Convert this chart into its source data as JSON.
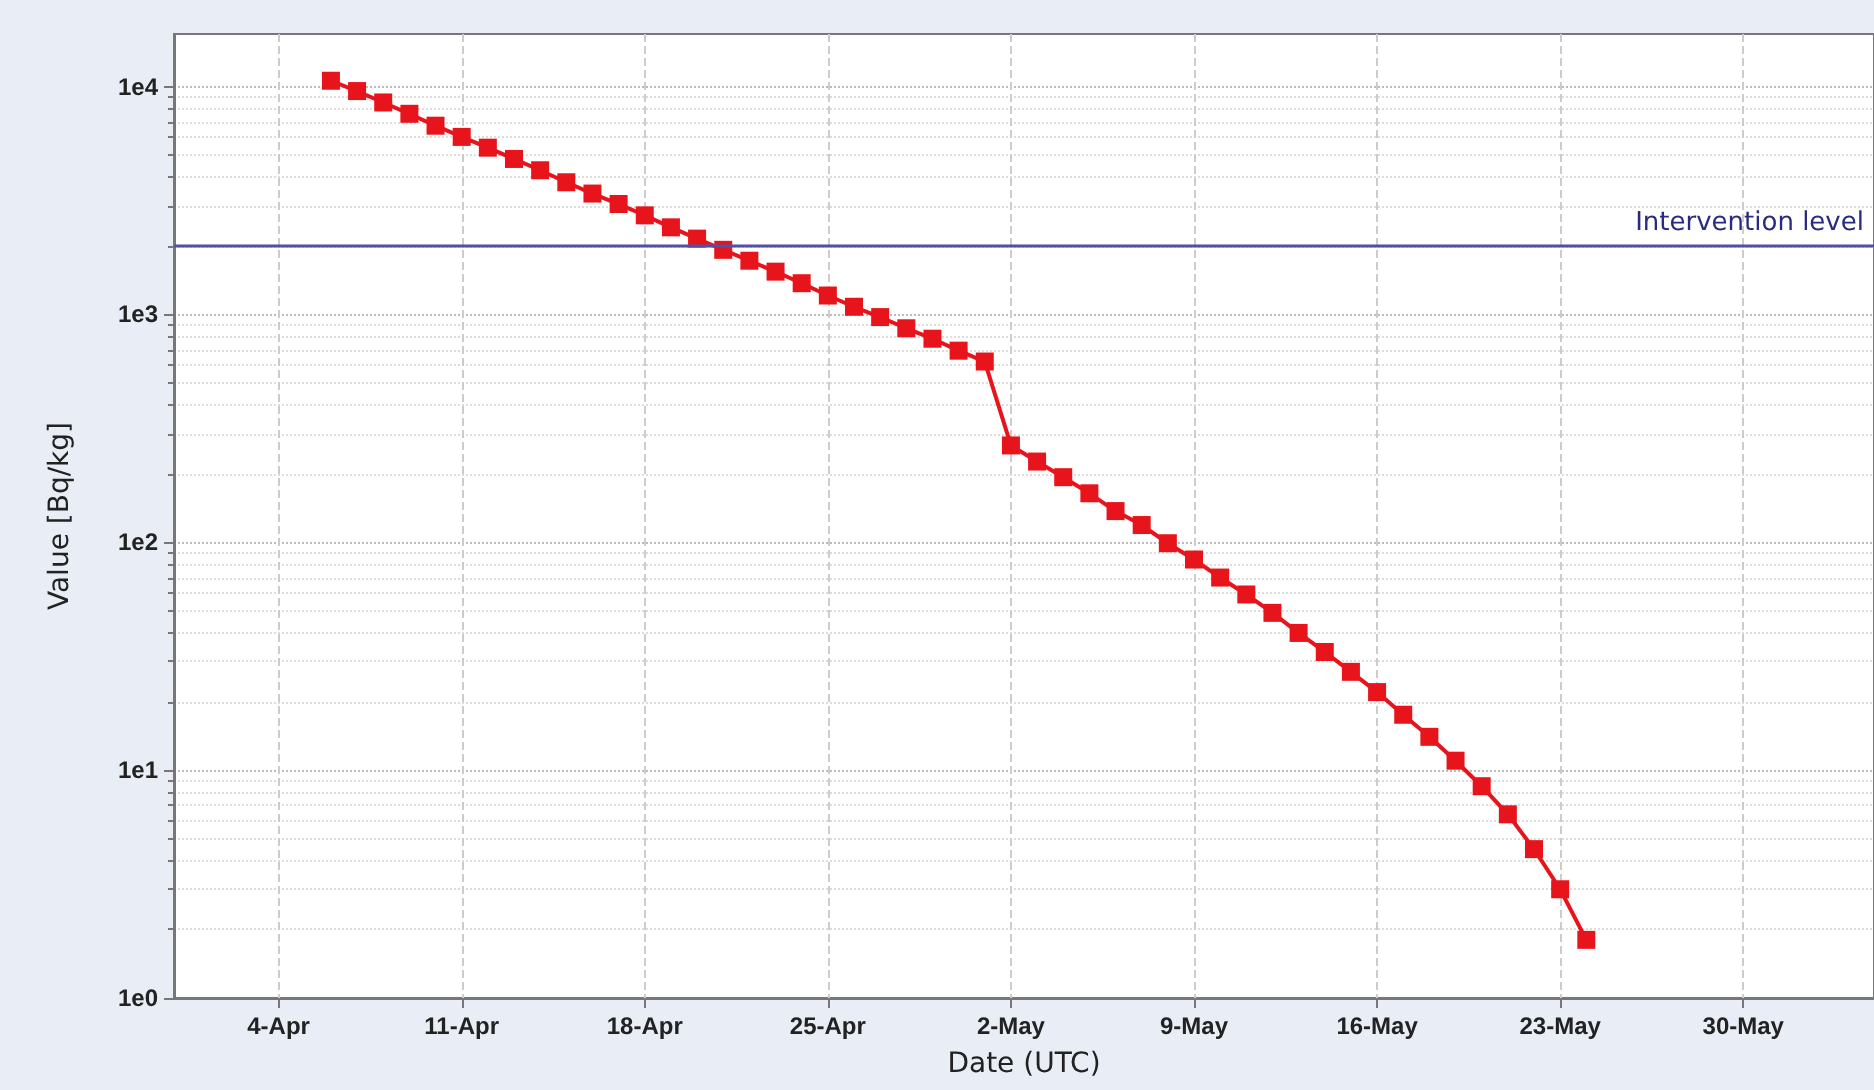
{
  "chart_data": {
    "type": "line",
    "xlabel": "Date (UTC)",
    "ylabel": "Value [Bq/kg]",
    "x": [
      "--04-06",
      "--04-07",
      "--04-08",
      "--04-09",
      "--04-10",
      "--04-11",
      "--04-12",
      "--04-13",
      "--04-14",
      "--04-15",
      "--04-16",
      "--04-17",
      "--04-18",
      "--04-19",
      "--04-20",
      "--04-21",
      "--04-22",
      "--04-23",
      "--04-24",
      "--04-25",
      "--04-26",
      "--04-27",
      "--04-28",
      "--04-29",
      "--04-30",
      "--05-01",
      "--05-02",
      "--05-03",
      "--05-04",
      "--05-05",
      "--05-06",
      "--05-07",
      "--05-08",
      "--05-09",
      "--05-10",
      "--05-11",
      "--05-12",
      "--05-13",
      "--05-14",
      "--05-15",
      "--05-16",
      "--05-17",
      "--05-18",
      "--05-19",
      "--05-20",
      "--05-21",
      "--05-22",
      "--05-23",
      "--05-24"
    ],
    "series": [
      {
        "color": "#e8141c",
        "values": [
          10600,
          9550,
          8510,
          7590,
          6730,
          6010,
          5390,
          4810,
          4290,
          3800,
          3390,
          3050,
          2720,
          2410,
          2150,
          1920,
          1720,
          1540,
          1370,
          1210,
          1080,
          973,
          869,
          782,
          693,
          621,
          266,
          226,
          193,
          164,
          137,
          119,
          99,
          84,
          70,
          59,
          49,
          40,
          33,
          27,
          22,
          17.5,
          14,
          11,
          8.5,
          6.4,
          4.5,
          3.0,
          1.8
        ]
      }
    ],
    "log": "y",
    "marker": "square",
    "line_style": "solid",
    "grid": true,
    "xlim": [
      "--03-31",
      "--06-04"
    ],
    "xticks": [
      {
        "value": "--04-04",
        "label": "4-Apr"
      },
      {
        "value": "--04-11",
        "label": "11-Apr"
      },
      {
        "value": "--04-18",
        "label": "18-Apr"
      },
      {
        "value": "--04-25",
        "label": "25-Apr"
      },
      {
        "value": "--05-02",
        "label": "2-May"
      },
      {
        "value": "--05-09",
        "label": "9-May"
      },
      {
        "value": "--05-16",
        "label": "16-May"
      },
      {
        "value": "--05-23",
        "label": "23-May"
      },
      {
        "value": "--05-30",
        "label": "30-May"
      }
    ],
    "ylim": [
      1,
      17000
    ],
    "yticks": [
      {
        "value": 1,
        "label": "1e0"
      },
      {
        "value": 10,
        "label": "1e1"
      },
      {
        "value": 100,
        "label": "1e2"
      },
      {
        "value": 1000,
        "label": "1e3"
      },
      {
        "value": 10000,
        "label": "1e4"
      }
    ],
    "ref_lines": [
      {
        "axis": "y",
        "value": 2000,
        "label": "Intervention level",
        "color": "#5050a8"
      }
    ]
  }
}
